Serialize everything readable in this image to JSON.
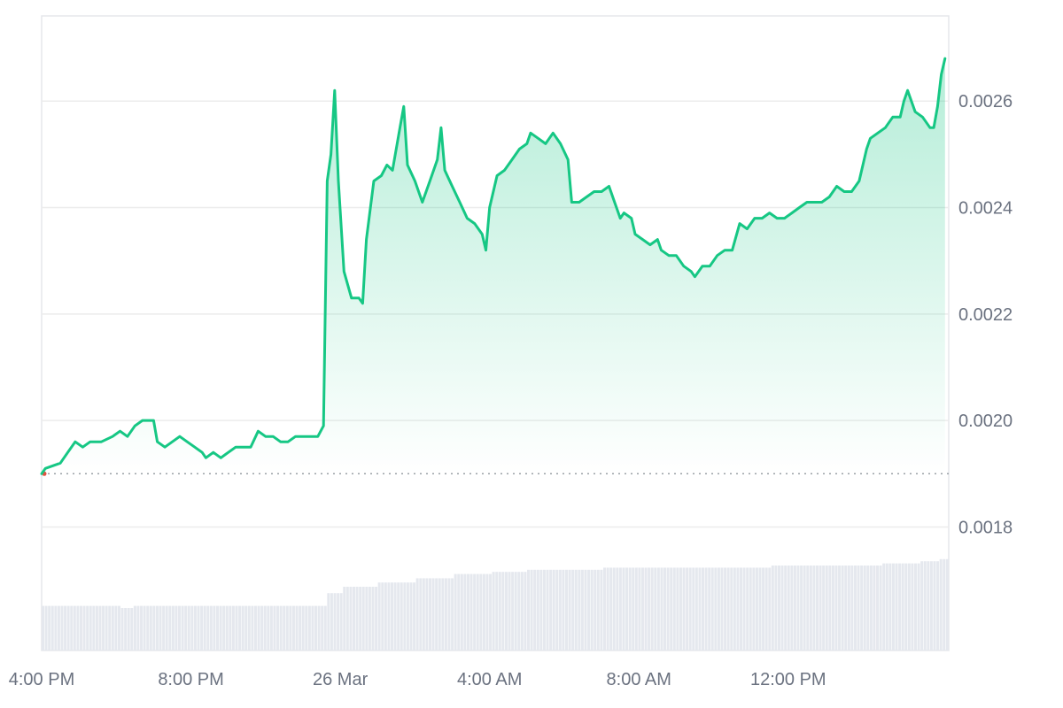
{
  "chart_data": {
    "type": "area",
    "title": "",
    "xlabel": "",
    "ylabel": "",
    "line_color": "#16c784",
    "fill_color": "#16c784",
    "reference_line_color": "#9aa0a6",
    "reference_value": 0.0019,
    "volume_color": "#e5e8ee",
    "grid": true,
    "x_ticks": [
      {
        "label": "4:00 PM",
        "t": 0
      },
      {
        "label": "8:00 PM",
        "t": 4
      },
      {
        "label": "26 Mar",
        "t": 8
      },
      {
        "label": "4:00 AM",
        "t": 12
      },
      {
        "label": "8:00 AM",
        "t": 16
      },
      {
        "label": "12:00 PM",
        "t": 20
      }
    ],
    "y_ticks": [
      "0.0018",
      "0.0020",
      "0.0022",
      "0.0024",
      "0.0026"
    ],
    "xlim": [
      0,
      24.3
    ],
    "ylim": [
      0.001568,
      0.00276
    ],
    "series": [
      {
        "points": [
          [
            0.0,
            0.0019
          ],
          [
            0.1,
            0.00191
          ],
          [
            0.5,
            0.00192
          ],
          [
            0.7,
            0.00194
          ],
          [
            0.9,
            0.00196
          ],
          [
            1.1,
            0.00195
          ],
          [
            1.3,
            0.00196
          ],
          [
            1.6,
            0.00196
          ],
          [
            1.9,
            0.00197
          ],
          [
            2.1,
            0.00198
          ],
          [
            2.3,
            0.00197
          ],
          [
            2.5,
            0.00199
          ],
          [
            2.7,
            0.002
          ],
          [
            2.9,
            0.002
          ],
          [
            3.0,
            0.002
          ],
          [
            3.1,
            0.00196
          ],
          [
            3.3,
            0.00195
          ],
          [
            3.5,
            0.00196
          ],
          [
            3.7,
            0.00197
          ],
          [
            3.9,
            0.00196
          ],
          [
            4.1,
            0.00195
          ],
          [
            4.3,
            0.00194
          ],
          [
            4.4,
            0.00193
          ],
          [
            4.6,
            0.00194
          ],
          [
            4.8,
            0.00193
          ],
          [
            5.0,
            0.00194
          ],
          [
            5.2,
            0.00195
          ],
          [
            5.4,
            0.00195
          ],
          [
            5.6,
            0.00195
          ],
          [
            5.8,
            0.00198
          ],
          [
            6.0,
            0.00197
          ],
          [
            6.2,
            0.00197
          ],
          [
            6.4,
            0.00196
          ],
          [
            6.6,
            0.00196
          ],
          [
            6.8,
            0.00197
          ],
          [
            7.0,
            0.00197
          ],
          [
            7.2,
            0.00197
          ],
          [
            7.4,
            0.00197
          ],
          [
            7.55,
            0.00199
          ],
          [
            7.65,
            0.00245
          ],
          [
            7.75,
            0.0025
          ],
          [
            7.85,
            0.00262
          ],
          [
            7.95,
            0.00245
          ],
          [
            8.1,
            0.00228
          ],
          [
            8.3,
            0.00223
          ],
          [
            8.5,
            0.00223
          ],
          [
            8.6,
            0.00222
          ],
          [
            8.7,
            0.00234
          ],
          [
            8.9,
            0.00245
          ],
          [
            9.1,
            0.00246
          ],
          [
            9.25,
            0.00248
          ],
          [
            9.4,
            0.00247
          ],
          [
            9.6,
            0.00255
          ],
          [
            9.7,
            0.00259
          ],
          [
            9.8,
            0.00248
          ],
          [
            10.0,
            0.00245
          ],
          [
            10.2,
            0.00241
          ],
          [
            10.4,
            0.00245
          ],
          [
            10.6,
            0.00249
          ],
          [
            10.7,
            0.00255
          ],
          [
            10.8,
            0.00247
          ],
          [
            11.0,
            0.00244
          ],
          [
            11.2,
            0.00241
          ],
          [
            11.4,
            0.00238
          ],
          [
            11.6,
            0.00237
          ],
          [
            11.8,
            0.00235
          ],
          [
            11.9,
            0.00232
          ],
          [
            12.0,
            0.0024
          ],
          [
            12.2,
            0.00246
          ],
          [
            12.4,
            0.00247
          ],
          [
            12.6,
            0.00249
          ],
          [
            12.8,
            0.00251
          ],
          [
            13.0,
            0.00252
          ],
          [
            13.1,
            0.00254
          ],
          [
            13.3,
            0.00253
          ],
          [
            13.5,
            0.00252
          ],
          [
            13.6,
            0.00253
          ],
          [
            13.7,
            0.00254
          ],
          [
            13.9,
            0.00252
          ],
          [
            14.1,
            0.00249
          ],
          [
            14.2,
            0.00241
          ],
          [
            14.4,
            0.00241
          ],
          [
            14.6,
            0.00242
          ],
          [
            14.8,
            0.00243
          ],
          [
            15.0,
            0.00243
          ],
          [
            15.2,
            0.00244
          ],
          [
            15.35,
            0.00241
          ],
          [
            15.5,
            0.00238
          ],
          [
            15.6,
            0.00239
          ],
          [
            15.8,
            0.00238
          ],
          [
            15.9,
            0.00235
          ],
          [
            16.1,
            0.00234
          ],
          [
            16.3,
            0.00233
          ],
          [
            16.5,
            0.00234
          ],
          [
            16.6,
            0.00232
          ],
          [
            16.8,
            0.00231
          ],
          [
            17.0,
            0.00231
          ],
          [
            17.2,
            0.00229
          ],
          [
            17.4,
            0.00228
          ],
          [
            17.5,
            0.00227
          ],
          [
            17.7,
            0.00229
          ],
          [
            17.9,
            0.00229
          ],
          [
            18.1,
            0.00231
          ],
          [
            18.3,
            0.00232
          ],
          [
            18.5,
            0.00232
          ],
          [
            18.7,
            0.00237
          ],
          [
            18.9,
            0.00236
          ],
          [
            19.1,
            0.00238
          ],
          [
            19.3,
            0.00238
          ],
          [
            19.5,
            0.00239
          ],
          [
            19.7,
            0.00238
          ],
          [
            19.9,
            0.00238
          ],
          [
            20.1,
            0.00239
          ],
          [
            20.3,
            0.0024
          ],
          [
            20.5,
            0.00241
          ],
          [
            20.7,
            0.00241
          ],
          [
            20.9,
            0.00241
          ],
          [
            21.1,
            0.00242
          ],
          [
            21.3,
            0.00244
          ],
          [
            21.5,
            0.00243
          ],
          [
            21.7,
            0.00243
          ],
          [
            21.9,
            0.00245
          ],
          [
            22.1,
            0.00251
          ],
          [
            22.2,
            0.00253
          ],
          [
            22.4,
            0.00254
          ],
          [
            22.6,
            0.00255
          ],
          [
            22.8,
            0.00257
          ],
          [
            23.0,
            0.00257
          ],
          [
            23.1,
            0.0026
          ],
          [
            23.2,
            0.00262
          ],
          [
            23.4,
            0.00258
          ],
          [
            23.6,
            0.00257
          ],
          [
            23.8,
            0.00255
          ],
          [
            23.9,
            0.00255
          ],
          [
            24.0,
            0.00259
          ],
          [
            24.1,
            0.00265
          ],
          [
            24.2,
            0.00268
          ]
        ]
      }
    ],
    "volume_levels": [
      [
        0.0,
        0.21
      ],
      [
        2.0,
        0.21
      ],
      [
        2.1,
        0.2
      ],
      [
        2.4,
        0.21
      ],
      [
        7.5,
        0.21
      ],
      [
        7.6,
        0.27
      ],
      [
        8.0,
        0.3
      ],
      [
        9.0,
        0.32
      ],
      [
        10.0,
        0.34
      ],
      [
        11.0,
        0.36
      ],
      [
        12.0,
        0.37
      ],
      [
        13.0,
        0.38
      ],
      [
        14.0,
        0.38
      ],
      [
        15.0,
        0.39
      ],
      [
        16.0,
        0.39
      ],
      [
        17.0,
        0.39
      ],
      [
        18.0,
        0.39
      ],
      [
        19.0,
        0.39
      ],
      [
        19.5,
        0.4
      ],
      [
        20.0,
        0.4
      ],
      [
        21.0,
        0.4
      ],
      [
        22.0,
        0.4
      ],
      [
        22.5,
        0.41
      ],
      [
        23.0,
        0.41
      ],
      [
        23.5,
        0.42
      ],
      [
        24.0,
        0.43
      ],
      [
        24.3,
        0.43
      ]
    ]
  }
}
